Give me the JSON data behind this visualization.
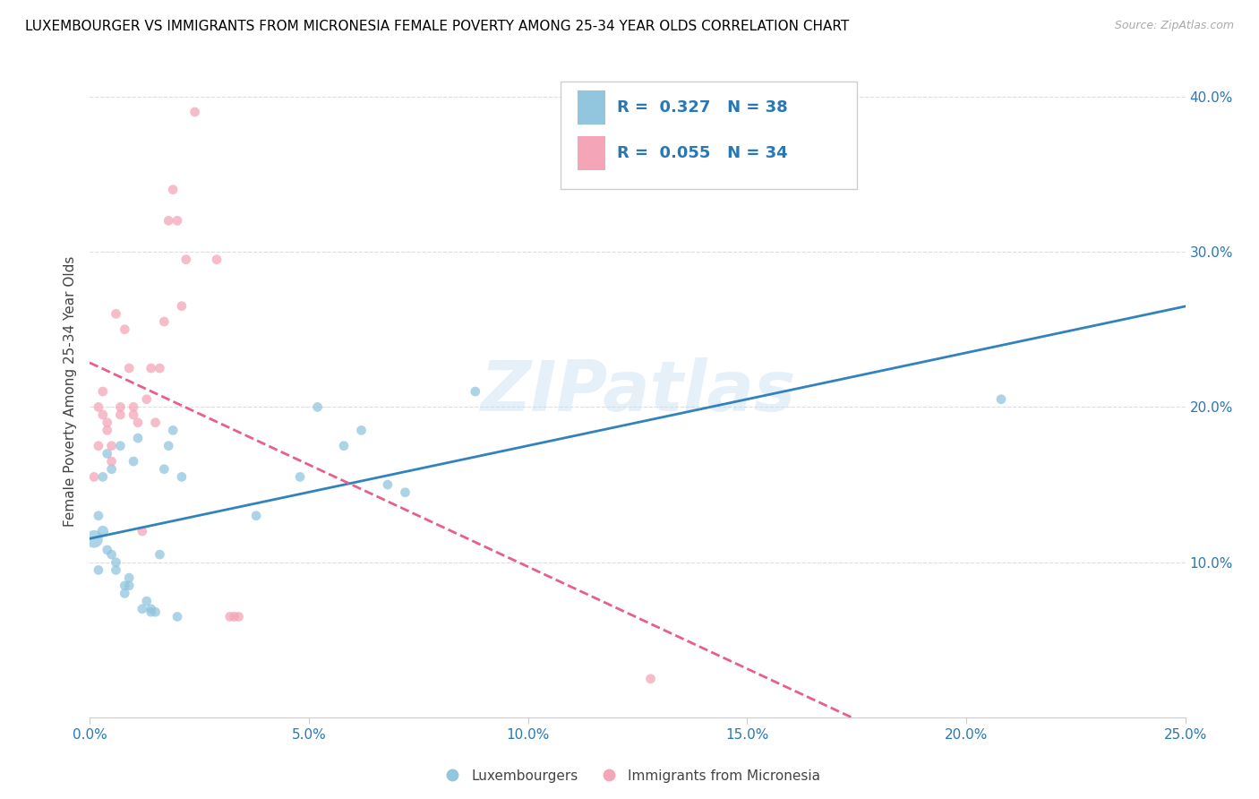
{
  "title": "LUXEMBOURGER VS IMMIGRANTS FROM MICRONESIA FEMALE POVERTY AMONG 25-34 YEAR OLDS CORRELATION CHART",
  "source": "Source: ZipAtlas.com",
  "ylabel": "Female Poverty Among 25-34 Year Olds",
  "xlim": [
    0.0,
    0.25
  ],
  "ylim": [
    0.0,
    0.42
  ],
  "xticks": [
    0.0,
    0.05,
    0.1,
    0.15,
    0.2,
    0.25
  ],
  "yticks": [
    0.0,
    0.1,
    0.2,
    0.3,
    0.4
  ],
  "xtick_labels": [
    "0.0%",
    "5.0%",
    "10.0%",
    "15.0%",
    "20.0%",
    "25.0%"
  ],
  "ytick_labels": [
    "",
    "10.0%",
    "20.0%",
    "30.0%",
    "40.0%"
  ],
  "legend_blue_label": "Luxembourgers",
  "legend_pink_label": "Immigrants from Micronesia",
  "R_blue": 0.327,
  "N_blue": 38,
  "R_pink": 0.055,
  "N_pink": 34,
  "blue_color": "#92c5de",
  "pink_color": "#f4a6b8",
  "blue_line_color": "#3182bd",
  "pink_line_color": "#e8608a",
  "watermark": "ZIPatlas",
  "blue_points": [
    [
      0.001,
      0.115
    ],
    [
      0.002,
      0.095
    ],
    [
      0.002,
      0.13
    ],
    [
      0.003,
      0.12
    ],
    [
      0.003,
      0.155
    ],
    [
      0.004,
      0.108
    ],
    [
      0.004,
      0.17
    ],
    [
      0.005,
      0.16
    ],
    [
      0.005,
      0.105
    ],
    [
      0.006,
      0.095
    ],
    [
      0.006,
      0.1
    ],
    [
      0.007,
      0.175
    ],
    [
      0.008,
      0.08
    ],
    [
      0.008,
      0.085
    ],
    [
      0.009,
      0.09
    ],
    [
      0.009,
      0.085
    ],
    [
      0.01,
      0.165
    ],
    [
      0.011,
      0.18
    ],
    [
      0.012,
      0.07
    ],
    [
      0.013,
      0.075
    ],
    [
      0.014,
      0.07
    ],
    [
      0.014,
      0.068
    ],
    [
      0.015,
      0.068
    ],
    [
      0.016,
      0.105
    ],
    [
      0.017,
      0.16
    ],
    [
      0.018,
      0.175
    ],
    [
      0.019,
      0.185
    ],
    [
      0.02,
      0.065
    ],
    [
      0.021,
      0.155
    ],
    [
      0.038,
      0.13
    ],
    [
      0.048,
      0.155
    ],
    [
      0.052,
      0.2
    ],
    [
      0.058,
      0.175
    ],
    [
      0.062,
      0.185
    ],
    [
      0.068,
      0.15
    ],
    [
      0.072,
      0.145
    ],
    [
      0.088,
      0.21
    ],
    [
      0.208,
      0.205
    ]
  ],
  "pink_points": [
    [
      0.001,
      0.155
    ],
    [
      0.002,
      0.175
    ],
    [
      0.002,
      0.2
    ],
    [
      0.003,
      0.195
    ],
    [
      0.003,
      0.21
    ],
    [
      0.004,
      0.185
    ],
    [
      0.004,
      0.19
    ],
    [
      0.005,
      0.165
    ],
    [
      0.005,
      0.175
    ],
    [
      0.006,
      0.26
    ],
    [
      0.007,
      0.2
    ],
    [
      0.007,
      0.195
    ],
    [
      0.008,
      0.25
    ],
    [
      0.009,
      0.225
    ],
    [
      0.01,
      0.2
    ],
    [
      0.01,
      0.195
    ],
    [
      0.011,
      0.19
    ],
    [
      0.012,
      0.12
    ],
    [
      0.013,
      0.205
    ],
    [
      0.014,
      0.225
    ],
    [
      0.015,
      0.19
    ],
    [
      0.016,
      0.225
    ],
    [
      0.017,
      0.255
    ],
    [
      0.018,
      0.32
    ],
    [
      0.019,
      0.34
    ],
    [
      0.02,
      0.32
    ],
    [
      0.021,
      0.265
    ],
    [
      0.022,
      0.295
    ],
    [
      0.024,
      0.39
    ],
    [
      0.029,
      0.295
    ],
    [
      0.032,
      0.065
    ],
    [
      0.033,
      0.065
    ],
    [
      0.034,
      0.065
    ],
    [
      0.128,
      0.025
    ]
  ],
  "blue_point_sizes": [
    200,
    60,
    60,
    80,
    60,
    60,
    60,
    60,
    60,
    60,
    60,
    60,
    60,
    60,
    60,
    60,
    60,
    60,
    60,
    60,
    60,
    60,
    60,
    60,
    60,
    60,
    60,
    60,
    60,
    60,
    60,
    60,
    60,
    60,
    60,
    60,
    60,
    60
  ],
  "pink_point_sizes": [
    60,
    60,
    60,
    60,
    60,
    60,
    60,
    60,
    60,
    60,
    60,
    60,
    60,
    60,
    60,
    60,
    60,
    60,
    60,
    60,
    60,
    60,
    60,
    60,
    60,
    60,
    60,
    60,
    60,
    60,
    60,
    60,
    60,
    60
  ]
}
